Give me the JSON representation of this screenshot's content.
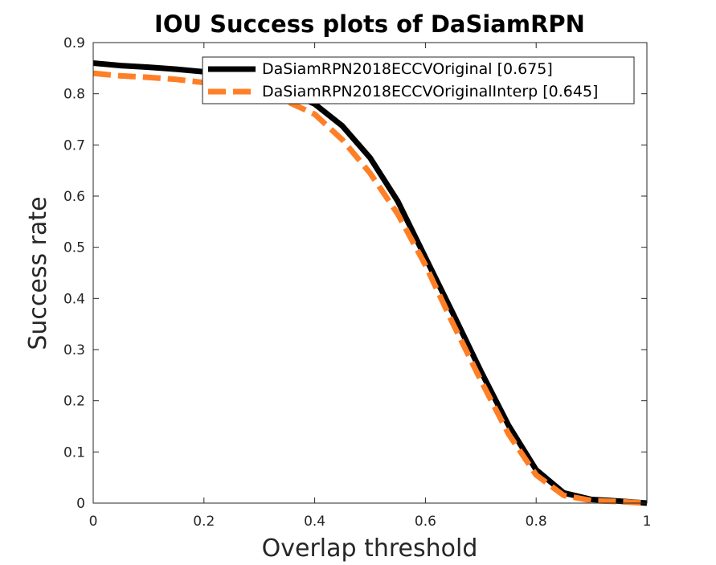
{
  "chart_data": {
    "type": "line",
    "title": "IOU Success plots of DaSiamRPN",
    "xlabel": "Overlap threshold",
    "ylabel": "Success rate",
    "xlim": [
      0,
      1
    ],
    "ylim": [
      0,
      0.9
    ],
    "xticks": [
      0,
      0.2,
      0.4,
      0.6,
      0.8,
      1
    ],
    "xtick_labels": [
      "0",
      "0.2",
      "0.4",
      "0.6",
      "0.8",
      "1"
    ],
    "yticks": [
      0,
      0.1,
      0.2,
      0.3,
      0.4,
      0.5,
      0.6,
      0.7,
      0.8,
      0.9
    ],
    "ytick_labels": [
      "0",
      "0.1",
      "0.2",
      "0.3",
      "0.4",
      "0.5",
      "0.6",
      "0.7",
      "0.8",
      "0.9"
    ],
    "grid": false,
    "legend_position": "top-right",
    "x": [
      0,
      0.05,
      0.1,
      0.15,
      0.2,
      0.25,
      0.3,
      0.35,
      0.4,
      0.45,
      0.5,
      0.55,
      0.6,
      0.65,
      0.7,
      0.75,
      0.8,
      0.85,
      0.9,
      0.95,
      1
    ],
    "series": [
      {
        "name": "DaSiamRPN2018ECCVOriginal [0.675]",
        "color": "#000000",
        "style": "solid",
        "values": [
          0.86,
          0.855,
          0.852,
          0.848,
          0.843,
          0.835,
          0.822,
          0.805,
          0.78,
          0.737,
          0.675,
          0.59,
          0.48,
          0.37,
          0.258,
          0.152,
          0.065,
          0.02,
          0.007,
          0.004,
          0.0
        ]
      },
      {
        "name": "DaSiamRPN2018ECCVOriginalInterp [0.645]",
        "color": "#FF7F27",
        "style": "dashed",
        "values": [
          0.84,
          0.835,
          0.832,
          0.828,
          0.822,
          0.815,
          0.8,
          0.785,
          0.76,
          0.71,
          0.645,
          0.565,
          0.465,
          0.35,
          0.24,
          0.135,
          0.055,
          0.015,
          0.005,
          0.003,
          0.0
        ]
      }
    ]
  }
}
